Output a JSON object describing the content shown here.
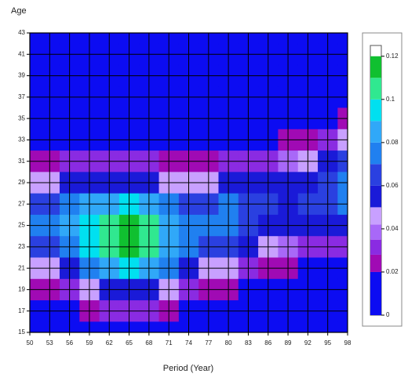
{
  "chart_data": {
    "type": "contour",
    "title": "Age",
    "x_label": "Period (Year)",
    "x": [
      50,
      53,
      56,
      59,
      62,
      65,
      68,
      71,
      74,
      77,
      80,
      83,
      86,
      89,
      92,
      95,
      98
    ],
    "y": [
      43,
      41,
      39,
      37,
      35,
      33,
      31,
      29,
      27,
      25,
      23,
      21,
      19,
      17,
      15
    ],
    "z": [
      [
        0.001,
        0.001,
        0.001,
        0.001,
        0.004,
        0.011,
        0.025,
        0.045,
        0.063,
        0.07,
        0.063,
        0.045,
        0.025,
        0.011,
        0.004
      ],
      [
        0.001,
        0.001,
        0.001,
        0.001,
        0.004,
        0.012,
        0.027,
        0.048,
        0.067,
        0.075,
        0.067,
        0.048,
        0.027,
        0.012,
        0.004
      ],
      [
        0.001,
        0.001,
        0.001,
        0.001,
        0.005,
        0.014,
        0.031,
        0.054,
        0.076,
        0.085,
        0.076,
        0.054,
        0.031,
        0.014,
        0.005
      ],
      [
        0.001,
        0.001,
        0.001,
        0.002,
        0.005,
        0.013,
        0.03,
        0.056,
        0.084,
        0.099,
        0.094,
        0.071,
        0.042,
        0.02,
        0.008
      ],
      [
        0.001,
        0.001,
        0.001,
        0.001,
        0.004,
        0.011,
        0.028,
        0.055,
        0.087,
        0.109,
        0.109,
        0.087,
        0.055,
        0.028,
        0.011
      ],
      [
        0.001,
        0.001,
        0.001,
        0.001,
        0.004,
        0.012,
        0.03,
        0.058,
        0.091,
        0.115,
        0.115,
        0.091,
        0.058,
        0.03,
        0.012
      ],
      [
        0.001,
        0.001,
        0.001,
        0.001,
        0.004,
        0.011,
        0.028,
        0.055,
        0.087,
        0.109,
        0.109,
        0.087,
        0.055,
        0.028,
        0.011
      ],
      [
        0.001,
        0.001,
        0.001,
        0.001,
        0.003,
        0.009,
        0.023,
        0.044,
        0.07,
        0.087,
        0.087,
        0.07,
        0.044,
        0.023,
        0.009
      ],
      [
        0.001,
        0.001,
        0.001,
        0.001,
        0.003,
        0.01,
        0.023,
        0.042,
        0.063,
        0.074,
        0.07,
        0.053,
        0.032,
        0.015,
        0.006
      ],
      [
        0.001,
        0.001,
        0.001,
        0.001,
        0.004,
        0.012,
        0.026,
        0.046,
        0.064,
        0.072,
        0.064,
        0.046,
        0.026,
        0.012,
        0.004
      ],
      [
        0.001,
        0.001,
        0.001,
        0.002,
        0.006,
        0.015,
        0.032,
        0.053,
        0.07,
        0.074,
        0.063,
        0.042,
        0.023,
        0.01,
        0.003
      ],
      [
        0.001,
        0.001,
        0.001,
        0.002,
        0.007,
        0.016,
        0.032,
        0.05,
        0.063,
        0.063,
        0.05,
        0.032,
        0.016,
        0.007,
        0.002
      ],
      [
        0.001,
        0.001,
        0.001,
        0.003,
        0.008,
        0.018,
        0.034,
        0.05,
        0.06,
        0.056,
        0.042,
        0.025,
        0.012,
        0.005,
        0.001
      ],
      [
        0.001,
        0.001,
        0.001,
        0.003,
        0.009,
        0.021,
        0.037,
        0.052,
        0.058,
        0.052,
        0.037,
        0.021,
        0.009,
        0.003,
        0.001
      ],
      [
        0.001,
        0.001,
        0.001,
        0.005,
        0.012,
        0.025,
        0.042,
        0.056,
        0.06,
        0.05,
        0.034,
        0.018,
        0.008,
        0.003,
        0.001
      ],
      [
        0.001,
        0.001,
        0.002,
        0.007,
        0.016,
        0.032,
        0.05,
        0.063,
        0.063,
        0.05,
        0.032,
        0.016,
        0.007,
        0.002,
        0.001
      ],
      [
        0.001,
        0.001,
        0.003,
        0.01,
        0.023,
        0.042,
        0.063,
        0.074,
        0.07,
        0.053,
        0.032,
        0.015,
        0.006,
        0.002,
        0.001
      ]
    ],
    "levels": [
      0,
      0.02,
      0.028,
      0.035,
      0.042,
      0.05,
      0.06,
      0.07,
      0.08,
      0.09,
      0.1,
      0.11,
      0.12
    ],
    "colors": [
      "#0c0cf2",
      "#a00ab4",
      "#8a2be2",
      "#a868f8",
      "#c8a0ff",
      "#1a1ad8",
      "#2a40e0",
      "#2080f0",
      "#30a8f8",
      "#00e0f0",
      "#30e890",
      "#10c030"
    ],
    "xlim": [
      50,
      98
    ],
    "ylim": [
      15,
      43
    ],
    "xticks": [
      50,
      53,
      56,
      59,
      62,
      65,
      68,
      71,
      74,
      77,
      80,
      83,
      86,
      89,
      92,
      95,
      98
    ],
    "yticks": [
      15,
      17,
      19,
      21,
      23,
      25,
      27,
      29,
      31,
      33,
      35,
      37,
      39,
      41,
      43
    ],
    "zlim": [
      0,
      0.125
    ],
    "zticks": [
      0,
      0.02,
      0.04,
      0.06,
      0.08,
      0.1,
      0.12
    ],
    "grid": true
  }
}
